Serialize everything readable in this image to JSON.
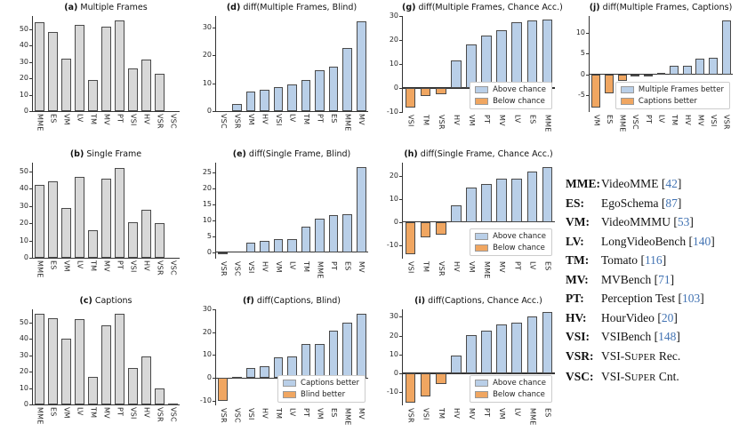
{
  "colors": {
    "gray": "#d8d8d8",
    "blue": "#b9cfe8",
    "orange": "#f0a661",
    "bar_edge": "#4a4a4a",
    "axis": "#333333",
    "cite_blue": "#4273b3"
  },
  "chart_data": [
    {
      "id": "a",
      "type": "bar",
      "title_prefix": "(a)",
      "title": "Multiple Frames",
      "palette": "gray",
      "ylim": [
        0,
        58
      ],
      "yticks": [
        0,
        10,
        20,
        30,
        40,
        50
      ],
      "categories": [
        "MME",
        "ES",
        "VM",
        "LV",
        "TM",
        "MV",
        "PT",
        "VSI",
        "HV",
        "VSR",
        "VSC"
      ],
      "values": [
        54,
        48,
        32,
        52.5,
        19,
        51.5,
        55.5,
        26,
        31.5,
        23,
        0
      ],
      "legend": null
    },
    {
      "id": "b",
      "type": "bar",
      "title_prefix": "(b)",
      "title": "Single Frame",
      "palette": "gray",
      "ylim": [
        0,
        55
      ],
      "yticks": [
        0,
        10,
        20,
        30,
        40,
        50
      ],
      "categories": [
        "MME",
        "ES",
        "VM",
        "LV",
        "TM",
        "MV",
        "PT",
        "VSI",
        "HV",
        "VSR",
        "VSC"
      ],
      "values": [
        42,
        44,
        29,
        47,
        16,
        46,
        52,
        20.5,
        28,
        20,
        0
      ],
      "legend": null
    },
    {
      "id": "c",
      "type": "bar",
      "title_prefix": "(c)",
      "title": "Captions",
      "palette": "gray",
      "ylim": [
        0,
        58
      ],
      "yticks": [
        0,
        10,
        20,
        30,
        40,
        50
      ],
      "categories": [
        "MME",
        "ES",
        "VM",
        "LV",
        "TM",
        "MV",
        "PT",
        "VSI",
        "HV",
        "VSR",
        "VSC"
      ],
      "values": [
        55.5,
        52.5,
        40,
        52,
        17,
        48,
        55.5,
        22,
        29.5,
        9.5,
        0.5
      ],
      "legend": null
    },
    {
      "id": "d",
      "type": "bar",
      "title_prefix": "(d)",
      "title": "diff(Multiple Frames, Blind)",
      "palette": "diff",
      "ylim": [
        0,
        34
      ],
      "yticks": [
        0,
        10,
        20,
        30
      ],
      "categories": [
        "VSC",
        "VSR",
        "VM",
        "HV",
        "VSI",
        "LV",
        "TM",
        "PT",
        "ES",
        "MME",
        "MV"
      ],
      "values": [
        0,
        2.5,
        7,
        7.5,
        8.5,
        9.5,
        11,
        14.5,
        16,
        22.5,
        32
      ],
      "legend": null
    },
    {
      "id": "e",
      "type": "bar",
      "title_prefix": "(e)",
      "title": "diff(Single Frame, Blind)",
      "palette": "diff",
      "ylim": [
        -2,
        28
      ],
      "yticks": [
        0,
        5,
        10,
        15,
        20,
        25
      ],
      "categories": [
        "VSR",
        "VSC",
        "VSI",
        "HV",
        "VM",
        "LV",
        "TM",
        "MME",
        "PT",
        "ES",
        "MV"
      ],
      "values": [
        -0.5,
        0,
        3,
        3.5,
        4,
        4,
        8,
        10.5,
        11.5,
        12,
        26.5
      ],
      "legend": null
    },
    {
      "id": "f",
      "type": "bar",
      "title_prefix": "(f)",
      "title": "diff(Captions, Blind)",
      "palette": "diff",
      "ylim": [
        -12,
        30
      ],
      "yticks": [
        -10,
        0,
        10,
        20,
        30
      ],
      "categories": [
        "VSR",
        "VSC",
        "VSI",
        "HV",
        "TM",
        "LV",
        "PT",
        "VM",
        "ES",
        "MME",
        "MV"
      ],
      "values": [
        -10,
        0.5,
        4.5,
        5,
        9,
        9.5,
        15,
        15,
        20.5,
        24,
        28
      ],
      "legend": {
        "items": [
          {
            "color": "blue",
            "label": "Captions better"
          },
          {
            "color": "orange",
            "label": "Blind better"
          }
        ]
      }
    },
    {
      "id": "g",
      "type": "bar",
      "title_prefix": "(g)",
      "title": "diff(Multiple Frames, Chance Acc.)",
      "palette": "diff",
      "ylim": [
        -10,
        30
      ],
      "yticks": [
        -10,
        0,
        10,
        20,
        30
      ],
      "categories": [
        "VSI",
        "TM",
        "VSR",
        "HV",
        "VM",
        "PT",
        "MV",
        "LV",
        "ES",
        "MME"
      ],
      "values": [
        -8,
        -3.5,
        -2.5,
        11.5,
        18,
        22,
        24,
        27.5,
        28,
        28.5
      ],
      "legend": {
        "items": [
          {
            "color": "blue",
            "label": "Above chance"
          },
          {
            "color": "orange",
            "label": "Below chance"
          }
        ]
      }
    },
    {
      "id": "h",
      "type": "bar",
      "title_prefix": "(h)",
      "title": "diff(Single Frame, Chance Acc.)",
      "palette": "diff",
      "ylim": [
        -16,
        26
      ],
      "yticks": [
        -10,
        0,
        10,
        20
      ],
      "categories": [
        "VSI",
        "TM",
        "VSR",
        "HV",
        "VM",
        "MME",
        "MV",
        "PT",
        "LV",
        "ES"
      ],
      "values": [
        -14,
        -6.5,
        -5.5,
        7.5,
        15,
        16.5,
        19,
        19,
        22,
        24
      ],
      "legend": {
        "items": [
          {
            "color": "blue",
            "label": "Above chance"
          },
          {
            "color": "orange",
            "label": "Below chance"
          }
        ]
      }
    },
    {
      "id": "i",
      "type": "bar",
      "title_prefix": "(i)",
      "title": "diff(Captions, Chance Acc.)",
      "palette": "diff",
      "ylim": [
        -17,
        34
      ],
      "yticks": [
        -10,
        0,
        10,
        20,
        30
      ],
      "categories": [
        "VSR",
        "VSI",
        "TM",
        "HV",
        "MV",
        "PT",
        "VM",
        "LV",
        "MME",
        "ES"
      ],
      "values": [
        -15.5,
        -12.5,
        -5.5,
        9.5,
        20.5,
        22.5,
        26,
        27,
        30,
        32.5
      ],
      "legend": {
        "items": [
          {
            "color": "blue",
            "label": "Above chance"
          },
          {
            "color": "orange",
            "label": "Below chance"
          }
        ]
      }
    },
    {
      "id": "j",
      "type": "bar",
      "title_prefix": "(j)",
      "title": "diff(Multiple Frames, Captions)",
      "palette": "diff",
      "ylim": [
        -9,
        14
      ],
      "yticks": [
        -5,
        0,
        5,
        10
      ],
      "categories": [
        "VM",
        "ES",
        "MME",
        "VSC",
        "PT",
        "LV",
        "TM",
        "HV",
        "MV",
        "VSI",
        "VSR"
      ],
      "values": [
        -8,
        -4.5,
        -1.5,
        -0.5,
        -0.4,
        0.3,
        2,
        2,
        3.7,
        4,
        13
      ],
      "legend": {
        "items": [
          {
            "color": "blue",
            "label": "Multiple Frames better"
          },
          {
            "color": "orange",
            "label": "Captions better"
          }
        ]
      }
    }
  ],
  "bench_legend": {
    "entries": [
      {
        "abbr": "MME:",
        "name": "VideoMME ",
        "cite": "42"
      },
      {
        "abbr": "ES:",
        "name": "EgoSchema ",
        "cite": "87"
      },
      {
        "abbr": "VM:",
        "name": "VideoMMMU ",
        "cite": "53"
      },
      {
        "abbr": "LV:",
        "name": "LongVideoBench ",
        "cite": "140"
      },
      {
        "abbr": "TM:",
        "name": "Tomato ",
        "cite": "116"
      },
      {
        "abbr": "MV:",
        "name": "MVBench ",
        "cite": "71"
      },
      {
        "abbr": "PT:",
        "name": "Perception Test ",
        "cite": "103"
      },
      {
        "abbr": "HV:",
        "name": "HourVideo ",
        "cite": "20"
      },
      {
        "abbr": "VSI:",
        "name": "VSIBench ",
        "cite": "148"
      },
      {
        "abbr": "VSR:",
        "name": "VSI-S{UPER} Rec.",
        "cite": null
      },
      {
        "abbr": "VSC:",
        "name": "VSI-S{UPER} Cnt.",
        "cite": null
      }
    ]
  }
}
